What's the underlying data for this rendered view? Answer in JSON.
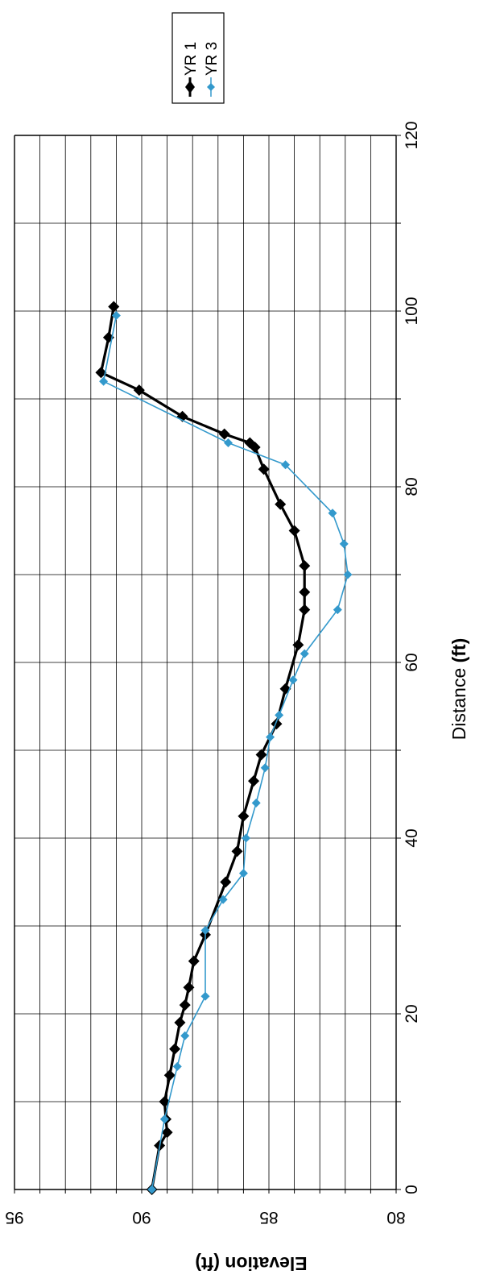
{
  "chart_data": {
    "type": "line",
    "orientation": "rotated-90-clockwise",
    "xlabel_plain": "Distance ",
    "xlabel_bold": "(ft)",
    "ylabel": "Elevation (ft)",
    "xlim": [
      0,
      120
    ],
    "ylim": [
      80,
      95
    ],
    "x_ticks": [
      "0",
      "20",
      "40",
      "60",
      "80",
      "100",
      "120"
    ],
    "y_ticks": [
      "80",
      "85",
      "90",
      "95"
    ],
    "grid": true,
    "legend_position": "top-right",
    "series": [
      {
        "name": "YR 1",
        "color": "#000000",
        "marker": "diamond",
        "x": [
          0,
          5,
          6.5,
          8,
          10,
          13,
          16,
          19,
          21,
          23,
          26,
          29,
          35,
          38.5,
          42.5,
          46.5,
          49.5,
          53,
          57,
          62,
          66,
          68,
          71,
          75,
          78,
          82,
          84.5,
          85,
          86,
          88,
          91,
          93,
          97,
          100.5
        ],
        "y": [
          89.6,
          89.3,
          89.0,
          89.05,
          89.1,
          88.9,
          88.7,
          88.5,
          88.3,
          88.15,
          87.95,
          87.5,
          86.7,
          86.25,
          86.0,
          85.6,
          85.3,
          84.7,
          84.35,
          83.85,
          83.6,
          83.6,
          83.6,
          84.0,
          84.55,
          85.2,
          85.55,
          85.75,
          86.75,
          88.4,
          90.1,
          91.6,
          91.3,
          91.1
        ]
      },
      {
        "name": "YR 3",
        "color": "#3399cc",
        "marker": "diamond",
        "x": [
          0,
          8,
          14,
          17.5,
          22,
          29.5,
          33,
          36,
          40,
          44,
          48,
          51.5,
          54,
          58,
          61,
          66,
          70,
          73.5,
          77,
          82.5,
          85,
          92,
          99.5
        ],
        "y": [
          89.6,
          89.1,
          88.6,
          88.3,
          87.5,
          87.5,
          86.8,
          86.0,
          85.9,
          85.5,
          85.15,
          84.95,
          84.6,
          84.05,
          83.6,
          82.3,
          81.9,
          82.05,
          82.5,
          84.35,
          86.6,
          91.5,
          91.0
        ]
      }
    ]
  }
}
